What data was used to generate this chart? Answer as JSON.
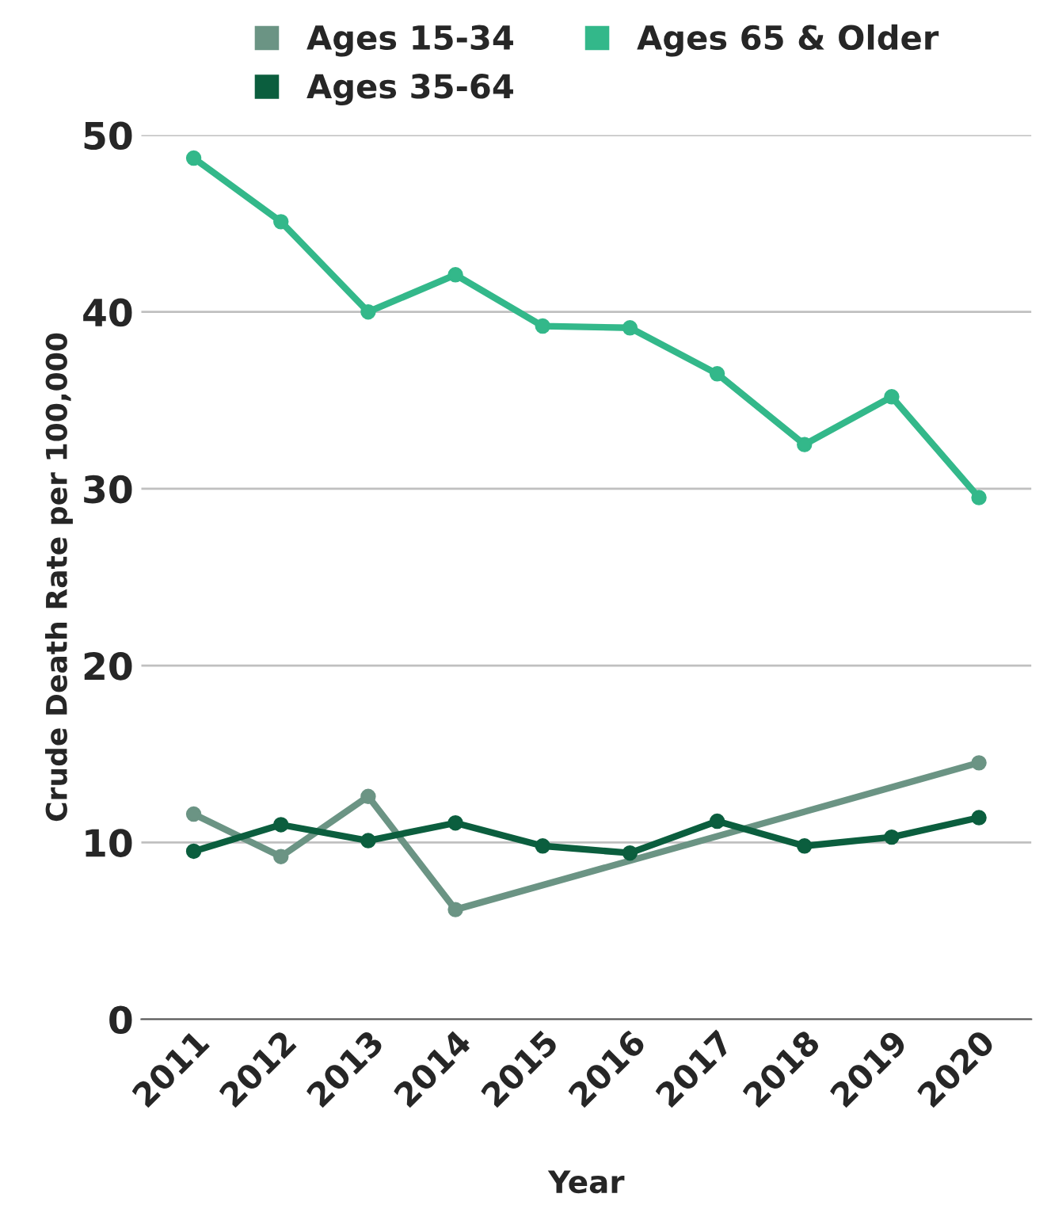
{
  "chart_data": {
    "type": "line",
    "xlabel": "Year",
    "ylabel": "Crude Death Rate per 100,000",
    "categories": [
      "2011",
      "2012",
      "2013",
      "2014",
      "2015",
      "2016",
      "2017",
      "2018",
      "2019",
      "2020"
    ],
    "series": [
      {
        "name": "Ages 15-34",
        "color": "#6b9484",
        "values": [
          11.6,
          9.2,
          12.6,
          6.2,
          null,
          null,
          null,
          null,
          null,
          14.5
        ]
      },
      {
        "name": "Ages 35-64",
        "color": "#0b5e3e",
        "values": [
          9.5,
          11.0,
          10.1,
          11.1,
          9.8,
          9.4,
          11.2,
          9.8,
          10.3,
          11.4
        ]
      },
      {
        "name": "Ages 65 & Older",
        "color": "#33b88a",
        "values": [
          48.7,
          45.1,
          40.0,
          42.1,
          39.2,
          39.1,
          36.5,
          32.5,
          35.2,
          29.5
        ]
      }
    ],
    "ylim": [
      0,
      50
    ],
    "yticks": [
      0,
      10,
      20,
      30,
      40,
      50
    ],
    "grid": "y",
    "legend": "top",
    "marker": "circle",
    "line_style": "solid"
  }
}
